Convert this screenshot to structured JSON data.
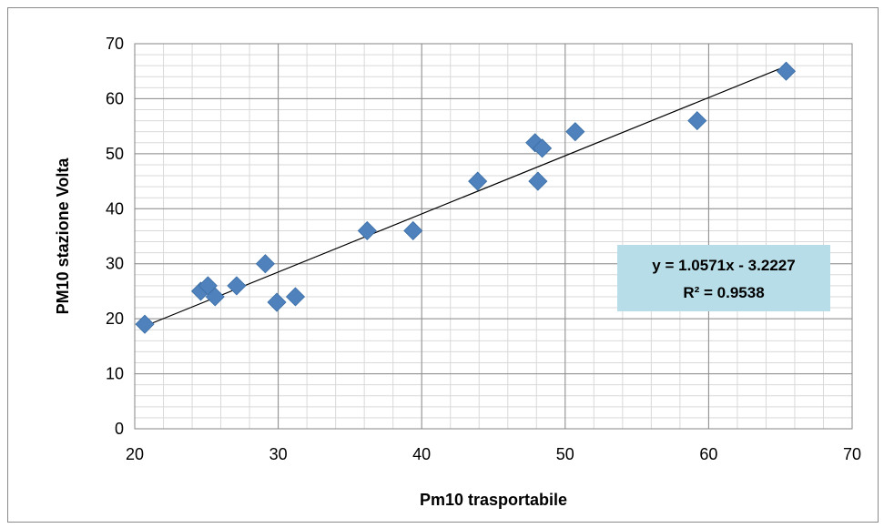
{
  "chart_data": {
    "type": "scatter",
    "xlabel": "Pm10 trasportabile",
    "ylabel": "PM10 stazione Volta",
    "xlim": [
      20,
      70
    ],
    "ylim": [
      0,
      70
    ],
    "x_ticks": [
      20,
      30,
      40,
      50,
      60,
      70
    ],
    "y_ticks": [
      0,
      10,
      20,
      30,
      40,
      50,
      60,
      70
    ],
    "minor_grid": {
      "x_step": 2,
      "y_step": 2
    },
    "grid": true,
    "marker": {
      "shape": "diamond",
      "color": "#4f81bd"
    },
    "series": [
      {
        "points": [
          [
            20.7,
            19
          ],
          [
            24.6,
            25
          ],
          [
            25.1,
            26
          ],
          [
            25.6,
            24
          ],
          [
            27.1,
            26
          ],
          [
            29.1,
            30
          ],
          [
            29.9,
            23
          ],
          [
            31.2,
            24
          ],
          [
            36.2,
            36
          ],
          [
            39.4,
            36
          ],
          [
            43.9,
            45
          ],
          [
            47.9,
            52
          ],
          [
            48.1,
            45
          ],
          [
            48.4,
            51
          ],
          [
            50.7,
            54
          ],
          [
            59.2,
            56
          ],
          [
            65.4,
            65
          ]
        ]
      }
    ],
    "trendline": {
      "slope": 1.0571,
      "intercept": -3.2227,
      "x_range": [
        20.7,
        65.4
      ],
      "color": "#000000"
    },
    "annotation": {
      "equation": "y = 1.0571x - 3.2227",
      "r_squared": "R² = 0.9538",
      "background": "#b7dde8"
    }
  }
}
